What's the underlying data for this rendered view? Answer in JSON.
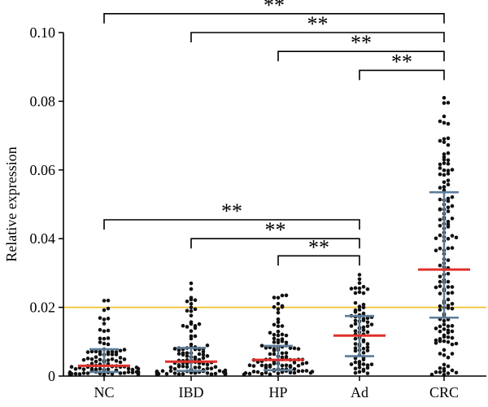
{
  "chart_data": {
    "type": "scatter",
    "subtype": "dot-plot",
    "ylabel": "Relative expression",
    "xlabel": "",
    "ylim": [
      0,
      0.1
    ],
    "yticks": [
      0,
      0.02,
      0.04,
      0.06,
      0.08,
      0.1
    ],
    "ytick_labels": [
      "0",
      "0.02",
      "0.04",
      "0.06",
      "0.08",
      "0.10"
    ],
    "categories": [
      "NC",
      "IBD",
      "HP",
      "Ad",
      "CRC"
    ],
    "groups": [
      {
        "name": "NC",
        "n": 95,
        "min": 0.0004,
        "max": 0.022,
        "median": 0.003,
        "q1": 0.0012,
        "q3": 0.0078
      },
      {
        "name": "IBD",
        "n": 105,
        "min": 0.0005,
        "max": 0.027,
        "median": 0.0042,
        "q1": 0.0015,
        "q3": 0.0082
      },
      {
        "name": "HP",
        "n": 100,
        "min": 0.0005,
        "max": 0.0235,
        "median": 0.0047,
        "q1": 0.0017,
        "q3": 0.0088
      },
      {
        "name": "Ad",
        "n": 75,
        "min": 0.0008,
        "max": 0.0295,
        "median": 0.0118,
        "q1": 0.0058,
        "q3": 0.0175
      },
      {
        "name": "CRC",
        "n": 145,
        "min": 0.0004,
        "max": 0.081,
        "median": 0.031,
        "q1": 0.017,
        "q3": 0.0535
      }
    ],
    "reference_line": {
      "value": 0.02,
      "color": "#f2c12e"
    },
    "comparisons": [
      {
        "from": "NC",
        "to": "CRC",
        "label": "**",
        "level": 0.1055
      },
      {
        "from": "IBD",
        "to": "CRC",
        "label": "**",
        "level": 0.1
      },
      {
        "from": "HP",
        "to": "CRC",
        "label": "**",
        "level": 0.0945
      },
      {
        "from": "Ad",
        "to": "CRC",
        "label": "**",
        "level": 0.089
      },
      {
        "from": "NC",
        "to": "Ad",
        "label": "**",
        "level": 0.0455
      },
      {
        "from": "IBD",
        "to": "Ad",
        "label": "**",
        "level": 0.04
      },
      {
        "from": "HP",
        "to": "Ad",
        "label": "**",
        "level": 0.035
      }
    ],
    "colors": {
      "points": "#111111",
      "median": "#e0302a",
      "iqr": "#5b7d9a",
      "axis": "#000000"
    }
  }
}
